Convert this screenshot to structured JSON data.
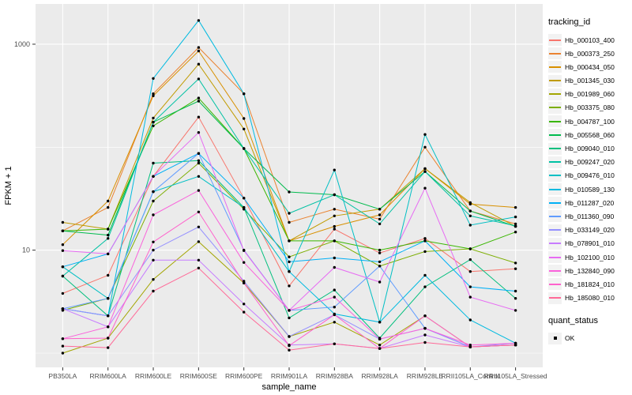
{
  "chart_data": {
    "type": "line",
    "title": "",
    "xlabel": "sample_name",
    "ylabel": "FPKM + 1",
    "y_scale": "log10",
    "grid": true,
    "legend_position": "right",
    "panel_bg": "#EBEBEB",
    "grid_color": "#FFFFFF",
    "tick_label_color": "#4D4D4D",
    "point_color": "#000000",
    "y_major_ticks": [
      1000,
      10
    ],
    "y_minor_ticks": [
      100,
      1
    ],
    "ylim_log": [
      0.72,
      1750
    ],
    "categories": [
      "PB350LA",
      "RRIM600LA",
      "RRIM600LE",
      "RRIM600SE",
      "RRIM600PE",
      "RRIM901LA",
      "RRIM928BA",
      "RRIM928LA",
      "RRIM928LE",
      "RRII105LA_Control",
      "RRII105LA_Stressed"
    ],
    "series": [
      {
        "name": "Hb_000103_400",
        "color": "#F8766D",
        "values": [
          3.8,
          5.7,
          52,
          196,
          32,
          4.5,
          16,
          9.4,
          13,
          6.2,
          6.6
        ]
      },
      {
        "name": "Hb_000373_250",
        "color": "#EA8331",
        "values": [
          15.4,
          26,
          330,
          930,
          330,
          18.6,
          25,
          20,
          100,
          24,
          18
        ]
      },
      {
        "name": "Hb_000434_050",
        "color": "#D89000",
        "values": [
          11.3,
          30,
          315,
          860,
          190,
          12.3,
          17,
          22,
          62,
          28,
          26
        ]
      },
      {
        "name": "Hb_001345_030",
        "color": "#C09B00",
        "values": [
          18.6,
          16,
          192,
          640,
          150,
          12.3,
          21.5,
          25,
          62,
          29,
          17
        ]
      },
      {
        "name": "Hb_001989_060",
        "color": "#A3A500",
        "values": [
          1.0,
          1.4,
          5.2,
          12.1,
          4.8,
          1.45,
          2.0,
          1.2,
          2.3,
          1.15,
          1.2
        ]
      },
      {
        "name": "Hb_003375_080",
        "color": "#7CAE00",
        "values": [
          2.6,
          3.4,
          30,
          70,
          25,
          8.6,
          12.3,
          7.0,
          9.7,
          10.3,
          7.5
        ]
      },
      {
        "name": "Hb_004787_100",
        "color": "#39B600",
        "values": [
          15.4,
          16,
          161,
          300,
          97,
          12.3,
          12.3,
          10,
          12.3,
          10.3,
          15
        ]
      },
      {
        "name": "Hb_005568_060",
        "color": "#00BB4E",
        "values": [
          15.4,
          14,
          175,
          280,
          97,
          36.7,
          34.5,
          25,
          58,
          24,
          17
        ]
      },
      {
        "name": "Hb_009040_010",
        "color": "#00BF7D",
        "values": [
          5.6,
          2.3,
          70,
          74,
          26,
          2.2,
          4.1,
          1.4,
          4.4,
          8.1,
          3.4
        ]
      },
      {
        "name": "Hb_009247_020",
        "color": "#00C1A3",
        "values": [
          5.6,
          13,
          175,
          460,
          97,
          22.8,
          34.5,
          18,
          58,
          21.5,
          17.2
        ]
      },
      {
        "name": "Hb_009476_010",
        "color": "#00BFC4",
        "values": [
          6.9,
          3.4,
          37,
          52,
          26,
          6.2,
          60,
          2.0,
          133,
          17.5,
          21
        ]
      },
      {
        "name": "Hb_010589_130",
        "color": "#00BAE0",
        "values": [
          2.7,
          2.3,
          465,
          1700,
          330,
          6.2,
          2.4,
          2.0,
          5.7,
          2.1,
          1.25
        ]
      },
      {
        "name": "Hb_011287_020",
        "color": "#00B0F6",
        "values": [
          6.9,
          9.2,
          52,
          87,
          32,
          7.7,
          8.4,
          7.7,
          12.3,
          4.4,
          4.0
        ]
      },
      {
        "name": "Hb_011360_090",
        "color": "#619CFF",
        "values": [
          2.7,
          3.4,
          37,
          87,
          10,
          2.6,
          2.8,
          7.0,
          1.74,
          1.15,
          1.2
        ]
      },
      {
        "name": "Hb_033149_020",
        "color": "#9590FF",
        "values": [
          2.7,
          2.3,
          10,
          16.8,
          5.0,
          1.45,
          2.36,
          1.37,
          1.74,
          1.15,
          1.25
        ]
      },
      {
        "name": "Hb_078901_010",
        "color": "#C77CFF",
        "values": [
          2.7,
          1.8,
          8.0,
          8.0,
          3.0,
          1.2,
          1.23,
          1.11,
          1.5,
          1.15,
          1.2
        ]
      },
      {
        "name": "Hb_102100_010",
        "color": "#E76BF3",
        "values": [
          9.9,
          9.2,
          52,
          139,
          9.9,
          2.6,
          6.8,
          4.9,
          40,
          3.5,
          2.6
        ]
      },
      {
        "name": "Hb_132840_090",
        "color": "#FA62DB",
        "values": [
          1.38,
          1.8,
          22,
          38,
          7.6,
          2.6,
          3.5,
          1.37,
          1.74,
          1.2,
          1.25
        ]
      },
      {
        "name": "Hb_181824_010",
        "color": "#FF61CC",
        "values": [
          1.38,
          1.4,
          12,
          23.5,
          4.8,
          1.18,
          2.36,
          1.11,
          2.3,
          1.15,
          1.2
        ]
      },
      {
        "name": "Hb_185080_010",
        "color": "#FF6A98",
        "values": [
          1.17,
          1.13,
          4.0,
          6.7,
          2.5,
          1.07,
          1.23,
          1.11,
          1.27,
          1.15,
          1.2
        ]
      }
    ]
  },
  "legend": {
    "tracking_title": "tracking_id",
    "quant_title": "quant_status",
    "quant_value": "OK"
  }
}
